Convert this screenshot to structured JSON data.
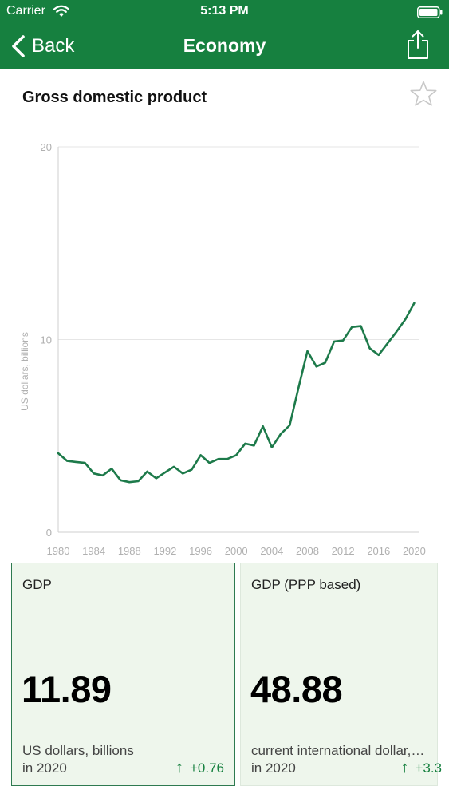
{
  "status_bar": {
    "carrier": "Carrier",
    "time": "5:13 PM"
  },
  "nav": {
    "back_label": "Back",
    "title": "Economy",
    "icons": {
      "back": "chevron-left-icon",
      "share": "share-icon"
    }
  },
  "chart": {
    "title": "Gross domestic product",
    "favorite_icon": "star-outline-icon"
  },
  "chart_data": {
    "type": "line",
    "title": "Gross domestic product",
    "xlabel": "",
    "ylabel": "US dollars, billions",
    "x": [
      1980,
      1981,
      1982,
      1983,
      1984,
      1985,
      1986,
      1987,
      1988,
      1989,
      1990,
      1991,
      1992,
      1993,
      1994,
      1995,
      1996,
      1997,
      1998,
      1999,
      2000,
      2001,
      2002,
      2003,
      2004,
      2005,
      2006,
      2007,
      2008,
      2009,
      2010,
      2011,
      2012,
      2013,
      2014,
      2015,
      2016,
      2017,
      2018,
      2019,
      2020
    ],
    "series": [
      {
        "values": [
          4.1,
          3.7,
          3.65,
          3.6,
          3.05,
          2.95,
          3.3,
          2.7,
          2.6,
          2.65,
          3.15,
          2.8,
          3.1,
          3.4,
          3.05,
          3.25,
          4.0,
          3.6,
          3.8,
          3.8,
          4.0,
          4.6,
          4.5,
          5.5,
          4.4,
          5.1,
          5.55,
          7.5,
          9.4,
          8.6,
          8.8,
          9.9,
          9.95,
          10.65,
          10.7,
          9.55,
          9.2,
          9.8,
          10.4,
          11.05,
          11.89
        ],
        "color": "#1d7a4a"
      }
    ],
    "xticks": [
      1980,
      1984,
      1988,
      1992,
      1996,
      2000,
      2004,
      2008,
      2012,
      2016,
      2020
    ],
    "yticks": [
      0,
      10,
      20
    ],
    "xlim": [
      1980,
      2020.5
    ],
    "ylim": [
      0,
      20
    ],
    "grid": true
  },
  "cards": [
    {
      "label": "GDP",
      "value": "11.89",
      "unit": "US dollars, billions",
      "year": "in 2020",
      "change": "+0.76",
      "selected": true
    },
    {
      "label": "GDP (PPP based)",
      "value": "48.88",
      "unit": "current international dollar,…",
      "year": "in 2020",
      "change": "+3.3",
      "selected": false
    }
  ],
  "colors": {
    "brand": "#16803f",
    "line": "#1d7a4a",
    "card_bg": "#eef6ec",
    "card_border": "#2e7a50"
  }
}
